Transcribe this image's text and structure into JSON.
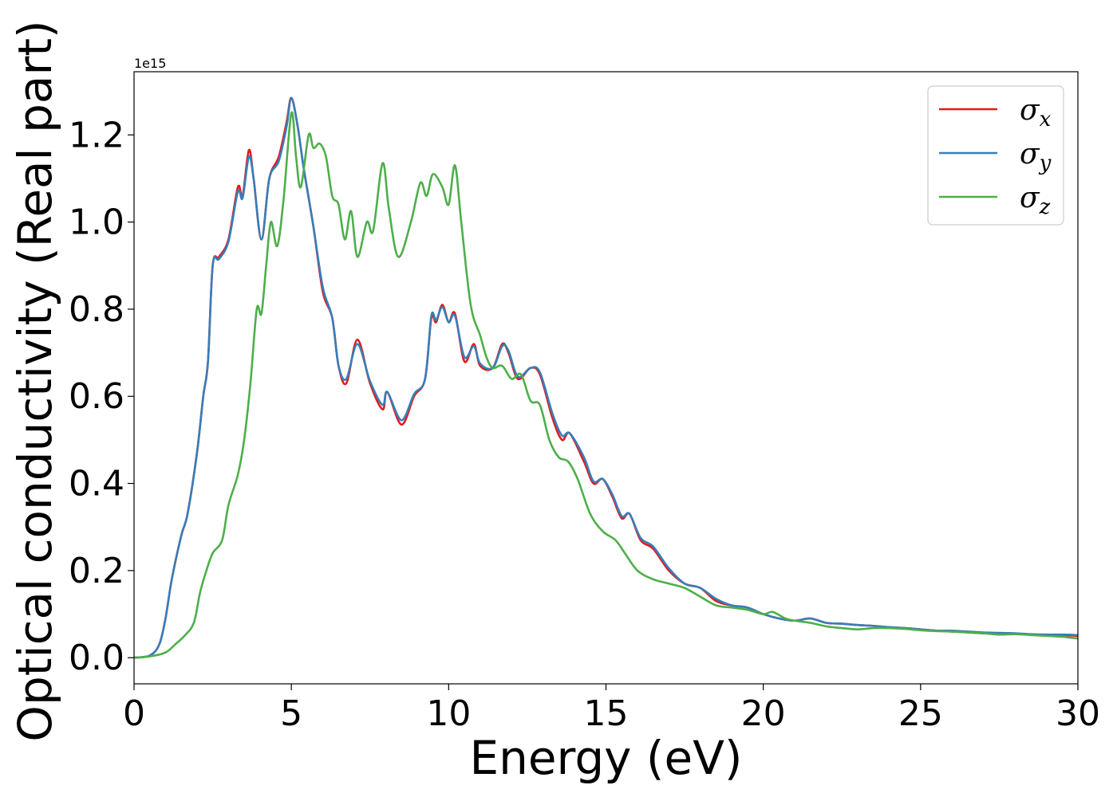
{
  "chart_data": {
    "type": "line",
    "xlabel": "Energy (eV)",
    "ylabel": "Optical conductivity (Real part)",
    "y_offset_label": "1e15",
    "xlim": [
      0,
      30
    ],
    "ylim": [
      -0.06,
      1.345
    ],
    "x_ticks": [
      0,
      5,
      10,
      15,
      20,
      25,
      30
    ],
    "x_tick_labels": [
      "0",
      "5",
      "10",
      "15",
      "20",
      "25",
      "30"
    ],
    "y_ticks": [
      0.0,
      0.2,
      0.4,
      0.6,
      0.8,
      1.0,
      1.2
    ],
    "y_tick_labels": [
      "0.0",
      "0.2",
      "0.4",
      "0.6",
      "0.8",
      "1.0",
      "1.2"
    ],
    "grid": false,
    "legend_position": "top-right",
    "series": [
      {
        "name": "σ_x",
        "legend_symbol": "σ",
        "legend_subscript": "x",
        "color": "#e41a1c",
        "points": [
          [
            0,
            0
          ],
          [
            0.5,
            0.005
          ],
          [
            0.8,
            0.03
          ],
          [
            1.0,
            0.09
          ],
          [
            1.2,
            0.18
          ],
          [
            1.5,
            0.28
          ],
          [
            1.7,
            0.33
          ],
          [
            2.0,
            0.47
          ],
          [
            2.2,
            0.6
          ],
          [
            2.35,
            0.68
          ],
          [
            2.5,
            0.9
          ],
          [
            2.7,
            0.92
          ],
          [
            3.0,
            0.96
          ],
          [
            3.3,
            1.08
          ],
          [
            3.45,
            1.06
          ],
          [
            3.65,
            1.165
          ],
          [
            3.8,
            1.1
          ],
          [
            4.05,
            0.96
          ],
          [
            4.3,
            1.1
          ],
          [
            4.6,
            1.15
          ],
          [
            4.85,
            1.23
          ],
          [
            5.0,
            1.285
          ],
          [
            5.2,
            1.22
          ],
          [
            5.4,
            1.12
          ],
          [
            5.7,
            0.99
          ],
          [
            6.0,
            0.84
          ],
          [
            6.3,
            0.78
          ],
          [
            6.5,
            0.67
          ],
          [
            6.75,
            0.63
          ],
          [
            7.1,
            0.73
          ],
          [
            7.5,
            0.63
          ],
          [
            7.9,
            0.57
          ],
          [
            8.05,
            0.61
          ],
          [
            8.5,
            0.535
          ],
          [
            8.9,
            0.6
          ],
          [
            9.25,
            0.64
          ],
          [
            9.45,
            0.78
          ],
          [
            9.6,
            0.77
          ],
          [
            9.8,
            0.81
          ],
          [
            10.0,
            0.77
          ],
          [
            10.2,
            0.79
          ],
          [
            10.5,
            0.68
          ],
          [
            10.8,
            0.72
          ],
          [
            11.0,
            0.67
          ],
          [
            11.4,
            0.665
          ],
          [
            11.7,
            0.72
          ],
          [
            11.9,
            0.7
          ],
          [
            12.2,
            0.64
          ],
          [
            12.6,
            0.665
          ],
          [
            12.9,
            0.65
          ],
          [
            13.3,
            0.55
          ],
          [
            13.6,
            0.5
          ],
          [
            13.85,
            0.515
          ],
          [
            14.3,
            0.45
          ],
          [
            14.6,
            0.4
          ],
          [
            14.9,
            0.41
          ],
          [
            15.2,
            0.37
          ],
          [
            15.5,
            0.32
          ],
          [
            15.75,
            0.33
          ],
          [
            16.1,
            0.27
          ],
          [
            16.5,
            0.25
          ],
          [
            17.0,
            0.2
          ],
          [
            17.5,
            0.17
          ],
          [
            18.0,
            0.16
          ],
          [
            18.5,
            0.13
          ],
          [
            19.0,
            0.12
          ],
          [
            19.5,
            0.115
          ],
          [
            20.0,
            0.1
          ],
          [
            20.5,
            0.09
          ],
          [
            21.0,
            0.085
          ],
          [
            21.5,
            0.09
          ],
          [
            22.0,
            0.08
          ],
          [
            22.5,
            0.078
          ],
          [
            23.0,
            0.075
          ],
          [
            23.5,
            0.073
          ],
          [
            24.0,
            0.07
          ],
          [
            24.5,
            0.068
          ],
          [
            25.0,
            0.065
          ],
          [
            25.5,
            0.062
          ],
          [
            26.0,
            0.06
          ],
          [
            26.5,
            0.058
          ],
          [
            27.0,
            0.056
          ],
          [
            27.5,
            0.055
          ],
          [
            28.0,
            0.055
          ],
          [
            28.5,
            0.053
          ],
          [
            29.0,
            0.052
          ],
          [
            29.5,
            0.052
          ],
          [
            30.0,
            0.05
          ]
        ]
      },
      {
        "name": "σ_y",
        "legend_symbol": "σ",
        "legend_subscript": "y",
        "color": "#377eb8",
        "points": [
          [
            0,
            0
          ],
          [
            0.5,
            0.005
          ],
          [
            0.8,
            0.03
          ],
          [
            1.0,
            0.09
          ],
          [
            1.2,
            0.18
          ],
          [
            1.5,
            0.28
          ],
          [
            1.7,
            0.33
          ],
          [
            2.0,
            0.47
          ],
          [
            2.2,
            0.6
          ],
          [
            2.35,
            0.68
          ],
          [
            2.5,
            0.9
          ],
          [
            2.7,
            0.915
          ],
          [
            3.0,
            0.955
          ],
          [
            3.3,
            1.07
          ],
          [
            3.45,
            1.055
          ],
          [
            3.65,
            1.15
          ],
          [
            3.8,
            1.1
          ],
          [
            4.05,
            0.96
          ],
          [
            4.3,
            1.1
          ],
          [
            4.6,
            1.14
          ],
          [
            4.85,
            1.22
          ],
          [
            5.0,
            1.285
          ],
          [
            5.2,
            1.22
          ],
          [
            5.4,
            1.12
          ],
          [
            5.7,
            0.99
          ],
          [
            6.0,
            0.85
          ],
          [
            6.3,
            0.78
          ],
          [
            6.5,
            0.67
          ],
          [
            6.75,
            0.64
          ],
          [
            7.1,
            0.72
          ],
          [
            7.5,
            0.635
          ],
          [
            7.9,
            0.58
          ],
          [
            8.05,
            0.61
          ],
          [
            8.5,
            0.545
          ],
          [
            8.9,
            0.605
          ],
          [
            9.25,
            0.64
          ],
          [
            9.45,
            0.785
          ],
          [
            9.6,
            0.775
          ],
          [
            9.8,
            0.805
          ],
          [
            10.0,
            0.77
          ],
          [
            10.2,
            0.785
          ],
          [
            10.5,
            0.69
          ],
          [
            10.8,
            0.715
          ],
          [
            11.0,
            0.675
          ],
          [
            11.4,
            0.665
          ],
          [
            11.7,
            0.715
          ],
          [
            11.9,
            0.705
          ],
          [
            12.2,
            0.645
          ],
          [
            12.6,
            0.665
          ],
          [
            12.9,
            0.655
          ],
          [
            13.3,
            0.56
          ],
          [
            13.6,
            0.51
          ],
          [
            13.85,
            0.515
          ],
          [
            14.3,
            0.46
          ],
          [
            14.6,
            0.405
          ],
          [
            14.9,
            0.41
          ],
          [
            15.2,
            0.375
          ],
          [
            15.5,
            0.325
          ],
          [
            15.75,
            0.33
          ],
          [
            16.1,
            0.275
          ],
          [
            16.5,
            0.255
          ],
          [
            17.0,
            0.205
          ],
          [
            17.5,
            0.17
          ],
          [
            18.0,
            0.16
          ],
          [
            18.5,
            0.135
          ],
          [
            19.0,
            0.12
          ],
          [
            19.5,
            0.115
          ],
          [
            20.0,
            0.1
          ],
          [
            20.5,
            0.09
          ],
          [
            21.0,
            0.085
          ],
          [
            21.5,
            0.09
          ],
          [
            22.0,
            0.08
          ],
          [
            22.5,
            0.078
          ],
          [
            23.0,
            0.075
          ],
          [
            23.5,
            0.073
          ],
          [
            24.0,
            0.07
          ],
          [
            24.5,
            0.068
          ],
          [
            25.0,
            0.065
          ],
          [
            25.5,
            0.062
          ],
          [
            26.0,
            0.062
          ],
          [
            26.5,
            0.06
          ],
          [
            27.0,
            0.058
          ],
          [
            27.5,
            0.057
          ],
          [
            28.0,
            0.056
          ],
          [
            28.5,
            0.054
          ],
          [
            29.0,
            0.053
          ],
          [
            29.5,
            0.053
          ],
          [
            30.0,
            0.052
          ]
        ]
      },
      {
        "name": "σ_z",
        "legend_symbol": "σ",
        "legend_subscript": "z",
        "color": "#4daf4a",
        "points": [
          [
            0,
            0
          ],
          [
            0.5,
            0.003
          ],
          [
            1.0,
            0.012
          ],
          [
            1.3,
            0.03
          ],
          [
            1.6,
            0.05
          ],
          [
            1.9,
            0.08
          ],
          [
            2.1,
            0.15
          ],
          [
            2.3,
            0.2
          ],
          [
            2.5,
            0.24
          ],
          [
            2.8,
            0.27
          ],
          [
            3.0,
            0.35
          ],
          [
            3.3,
            0.42
          ],
          [
            3.5,
            0.5
          ],
          [
            3.7,
            0.63
          ],
          [
            3.9,
            0.8
          ],
          [
            4.05,
            0.79
          ],
          [
            4.2,
            0.9
          ],
          [
            4.35,
            1.0
          ],
          [
            4.55,
            0.945
          ],
          [
            4.75,
            1.05
          ],
          [
            5.0,
            1.25
          ],
          [
            5.15,
            1.15
          ],
          [
            5.3,
            1.08
          ],
          [
            5.55,
            1.2
          ],
          [
            5.7,
            1.17
          ],
          [
            5.9,
            1.18
          ],
          [
            6.1,
            1.15
          ],
          [
            6.3,
            1.06
          ],
          [
            6.5,
            1.04
          ],
          [
            6.7,
            0.96
          ],
          [
            6.9,
            1.025
          ],
          [
            7.1,
            0.92
          ],
          [
            7.4,
            1.0
          ],
          [
            7.6,
            0.98
          ],
          [
            7.9,
            1.135
          ],
          [
            8.1,
            1.03
          ],
          [
            8.4,
            0.92
          ],
          [
            8.8,
            1.0
          ],
          [
            9.1,
            1.09
          ],
          [
            9.3,
            1.06
          ],
          [
            9.5,
            1.11
          ],
          [
            9.8,
            1.08
          ],
          [
            10.0,
            1.04
          ],
          [
            10.2,
            1.13
          ],
          [
            10.4,
            1.0
          ],
          [
            10.7,
            0.81
          ],
          [
            11.0,
            0.74
          ],
          [
            11.2,
            0.69
          ],
          [
            11.4,
            0.665
          ],
          [
            11.7,
            0.67
          ],
          [
            12.0,
            0.64
          ],
          [
            12.3,
            0.65
          ],
          [
            12.6,
            0.59
          ],
          [
            12.9,
            0.58
          ],
          [
            13.2,
            0.5
          ],
          [
            13.5,
            0.46
          ],
          [
            13.8,
            0.45
          ],
          [
            14.1,
            0.41
          ],
          [
            14.5,
            0.33
          ],
          [
            14.9,
            0.29
          ],
          [
            15.3,
            0.27
          ],
          [
            15.6,
            0.24
          ],
          [
            16.0,
            0.2
          ],
          [
            16.5,
            0.18
          ],
          [
            17.0,
            0.17
          ],
          [
            17.5,
            0.16
          ],
          [
            18.0,
            0.14
          ],
          [
            18.5,
            0.12
          ],
          [
            19.0,
            0.115
          ],
          [
            19.5,
            0.11
          ],
          [
            20.0,
            0.1
          ],
          [
            20.3,
            0.105
          ],
          [
            20.7,
            0.09
          ],
          [
            21.0,
            0.085
          ],
          [
            21.5,
            0.08
          ],
          [
            22.0,
            0.072
          ],
          [
            22.5,
            0.068
          ],
          [
            23.0,
            0.065
          ],
          [
            23.5,
            0.068
          ],
          [
            24.0,
            0.068
          ],
          [
            24.5,
            0.066
          ],
          [
            25.0,
            0.063
          ],
          [
            25.5,
            0.061
          ],
          [
            26.0,
            0.06
          ],
          [
            26.5,
            0.058
          ],
          [
            27.0,
            0.056
          ],
          [
            27.5,
            0.053
          ],
          [
            28.0,
            0.054
          ],
          [
            28.5,
            0.052
          ],
          [
            29.0,
            0.05
          ],
          [
            29.5,
            0.048
          ],
          [
            30.0,
            0.044
          ]
        ]
      }
    ]
  }
}
